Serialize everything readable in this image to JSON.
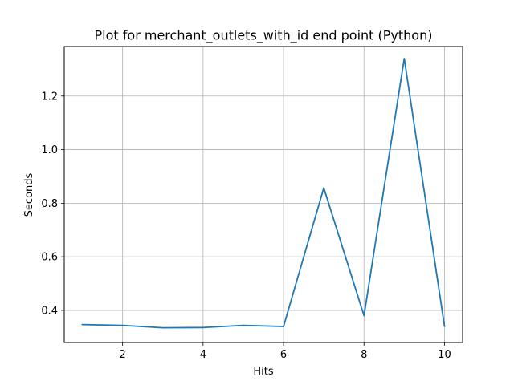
{
  "chart_data": {
    "type": "line",
    "title": "Plot for merchant_outlets_with_id end point (Python)",
    "xlabel": "Hits",
    "ylabel": "Seconds",
    "xlim": [
      0.55,
      10.45
    ],
    "ylim": [
      0.28,
      1.385
    ],
    "grid": true,
    "x_ticks": [
      2,
      4,
      6,
      8,
      10
    ],
    "y_ticks": [
      0.4,
      0.6,
      0.8,
      1.0,
      1.2
    ],
    "series": [
      {
        "color": "#1f77b4",
        "x": [
          1,
          2,
          3,
          4,
          5,
          6,
          7,
          8,
          9,
          10
        ],
        "y": [
          0.347,
          0.344,
          0.335,
          0.336,
          0.344,
          0.34,
          0.857,
          0.38,
          1.34,
          0.341
        ]
      }
    ]
  }
}
